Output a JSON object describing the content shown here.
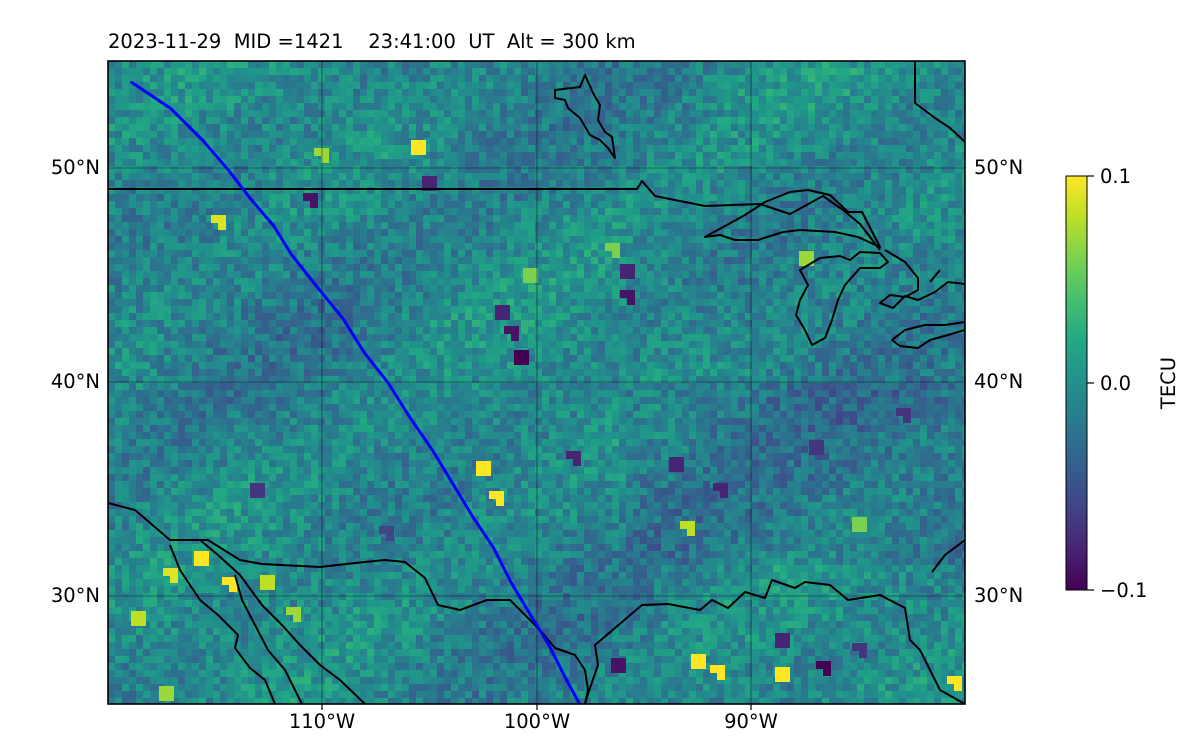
{
  "title": "2023-11-29  MID =1421    23:41:00  UT  Alt = 300 km",
  "colorbar": {
    "label": "TECU",
    "colormap": "viridis",
    "range": [
      -0.1,
      0.1
    ],
    "ticks": [
      {
        "value": 0.1,
        "label": "0.1"
      },
      {
        "value": 0.0,
        "label": "0.0"
      },
      {
        "value": -0.1,
        "label": "−0.1"
      }
    ]
  },
  "map": {
    "lon_range": [
      -119.9,
      -80.1
    ],
    "lat_range": [
      25.0,
      55.0
    ],
    "lon_gridlines": [
      -110,
      -100,
      -90
    ],
    "lat_gridlines": [
      30,
      40,
      50
    ],
    "lon_labels": [
      "110°W",
      "100°W",
      "90°W"
    ],
    "lat_labels": [
      "30°N",
      "40°N",
      "50°N"
    ],
    "satellite_track_color": "#0000ff",
    "coastline_color": "#000000",
    "satellite_track": [
      [
        -118.8,
        54.0
      ],
      [
        -117.0,
        52.8
      ],
      [
        -115.5,
        51.3
      ],
      [
        -114.3,
        49.9
      ],
      [
        -113.3,
        48.6
      ],
      [
        -112.2,
        47.3
      ],
      [
        -111.4,
        46.0
      ],
      [
        -110.3,
        44.6
      ],
      [
        -109.0,
        43.0
      ],
      [
        -108.0,
        41.4
      ],
      [
        -106.9,
        40.0
      ],
      [
        -105.9,
        38.4
      ],
      [
        -104.8,
        36.8
      ],
      [
        -103.9,
        35.3
      ],
      [
        -103.0,
        33.8
      ],
      [
        -102.0,
        32.3
      ],
      [
        -101.2,
        30.7
      ],
      [
        -100.3,
        29.2
      ],
      [
        -99.4,
        27.7
      ],
      [
        -98.7,
        26.3
      ],
      [
        -98.0,
        25.0
      ]
    ],
    "hotspots": [
      {
        "lon": -105.5,
        "lat": 51.0,
        "value": 0.1
      },
      {
        "lon": -110.0,
        "lat": 50.6,
        "value": 0.07
      },
      {
        "lon": -118.5,
        "lat": 29.0,
        "value": 0.08
      },
      {
        "lon": -117.0,
        "lat": 31.0,
        "value": 0.09
      },
      {
        "lon": -115.6,
        "lat": 31.8,
        "value": 0.1
      },
      {
        "lon": -114.3,
        "lat": 30.6,
        "value": 0.1
      },
      {
        "lon": -112.5,
        "lat": 30.7,
        "value": 0.08
      },
      {
        "lon": -111.3,
        "lat": 29.2,
        "value": 0.07
      },
      {
        "lon": -117.2,
        "lat": 25.5,
        "value": 0.07
      },
      {
        "lon": -114.8,
        "lat": 47.5,
        "value": 0.09
      },
      {
        "lon": -102.5,
        "lat": 36.0,
        "value": 0.1
      },
      {
        "lon": -101.9,
        "lat": 34.6,
        "value": 0.1
      },
      {
        "lon": -92.5,
        "lat": 27.0,
        "value": 0.1
      },
      {
        "lon": -91.6,
        "lat": 26.5,
        "value": 0.1
      },
      {
        "lon": -88.6,
        "lat": 26.4,
        "value": 0.1
      },
      {
        "lon": -80.6,
        "lat": 26.0,
        "value": 0.1
      },
      {
        "lon": -87.5,
        "lat": 45.8,
        "value": 0.07
      },
      {
        "lon": -93.0,
        "lat": 33.2,
        "value": 0.08
      },
      {
        "lon": -85.0,
        "lat": 33.4,
        "value": 0.06
      },
      {
        "lon": -96.5,
        "lat": 46.2,
        "value": 0.06
      },
      {
        "lon": -100.3,
        "lat": 45.0,
        "value": 0.06
      }
    ],
    "coldspots": [
      {
        "lon": -100.7,
        "lat": 41.2,
        "value": -0.1
      },
      {
        "lon": -101.2,
        "lat": 42.3,
        "value": -0.09
      },
      {
        "lon": -101.6,
        "lat": 43.3,
        "value": -0.08
      },
      {
        "lon": -95.8,
        "lat": 44.0,
        "value": -0.09
      },
      {
        "lon": -95.8,
        "lat": 45.2,
        "value": -0.08
      },
      {
        "lon": -110.5,
        "lat": 48.5,
        "value": -0.09
      },
      {
        "lon": -105.0,
        "lat": 49.3,
        "value": -0.08
      },
      {
        "lon": -98.3,
        "lat": 36.5,
        "value": -0.08
      },
      {
        "lon": -93.5,
        "lat": 36.2,
        "value": -0.08
      },
      {
        "lon": -91.5,
        "lat": 35.0,
        "value": -0.08
      },
      {
        "lon": -87.0,
        "lat": 37.0,
        "value": -0.07
      },
      {
        "lon": -83.0,
        "lat": 38.5,
        "value": -0.07
      },
      {
        "lon": -96.2,
        "lat": 26.8,
        "value": -0.09
      },
      {
        "lon": -86.7,
        "lat": 26.7,
        "value": -0.1
      },
      {
        "lon": -88.6,
        "lat": 28.0,
        "value": -0.08
      },
      {
        "lon": -85.0,
        "lat": 27.5,
        "value": -0.07
      },
      {
        "lon": -113.0,
        "lat": 35.0,
        "value": -0.07
      },
      {
        "lon": -107.0,
        "lat": 33.0,
        "value": -0.06
      }
    ]
  }
}
